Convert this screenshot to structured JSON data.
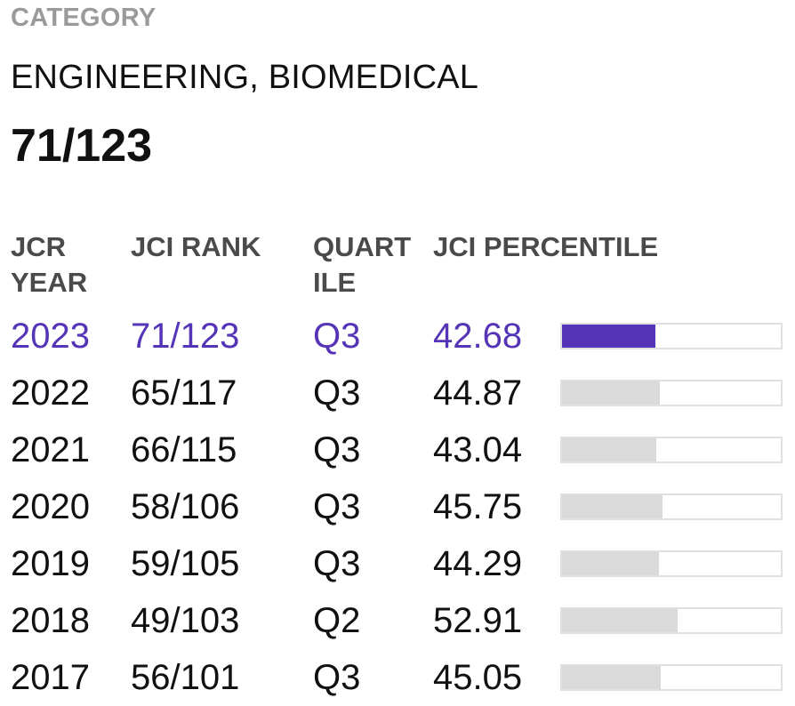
{
  "category": {
    "label": "CATEGORY",
    "name": "ENGINEERING, BIOMEDICAL",
    "rank": "71/123"
  },
  "table": {
    "headers": {
      "year": [
        "JCR",
        "YEAR"
      ],
      "rank": "JCI RANK",
      "quartile": [
        "QUART",
        "ILE"
      ],
      "percentile": "JCI PERCENTILE"
    },
    "rows": [
      {
        "year": "2023",
        "rank": "71/123",
        "quartile": "Q3",
        "percentile": "42.68",
        "current": true
      },
      {
        "year": "2022",
        "rank": "65/117",
        "quartile": "Q3",
        "percentile": "44.87",
        "current": false
      },
      {
        "year": "2021",
        "rank": "66/115",
        "quartile": "Q3",
        "percentile": "43.04",
        "current": false
      },
      {
        "year": "2020",
        "rank": "58/106",
        "quartile": "Q3",
        "percentile": "45.75",
        "current": false
      },
      {
        "year": "2019",
        "rank": "59/105",
        "quartile": "Q3",
        "percentile": "44.29",
        "current": false
      },
      {
        "year": "2018",
        "rank": "49/103",
        "quartile": "Q2",
        "percentile": "52.91",
        "current": false
      },
      {
        "year": "2017",
        "rank": "56/101",
        "quartile": "Q3",
        "percentile": "45.05",
        "current": false
      }
    ]
  },
  "colors": {
    "accent": "#5634b8",
    "bar_inactive": "#dadada",
    "label_gray": "#9a9a9a"
  }
}
